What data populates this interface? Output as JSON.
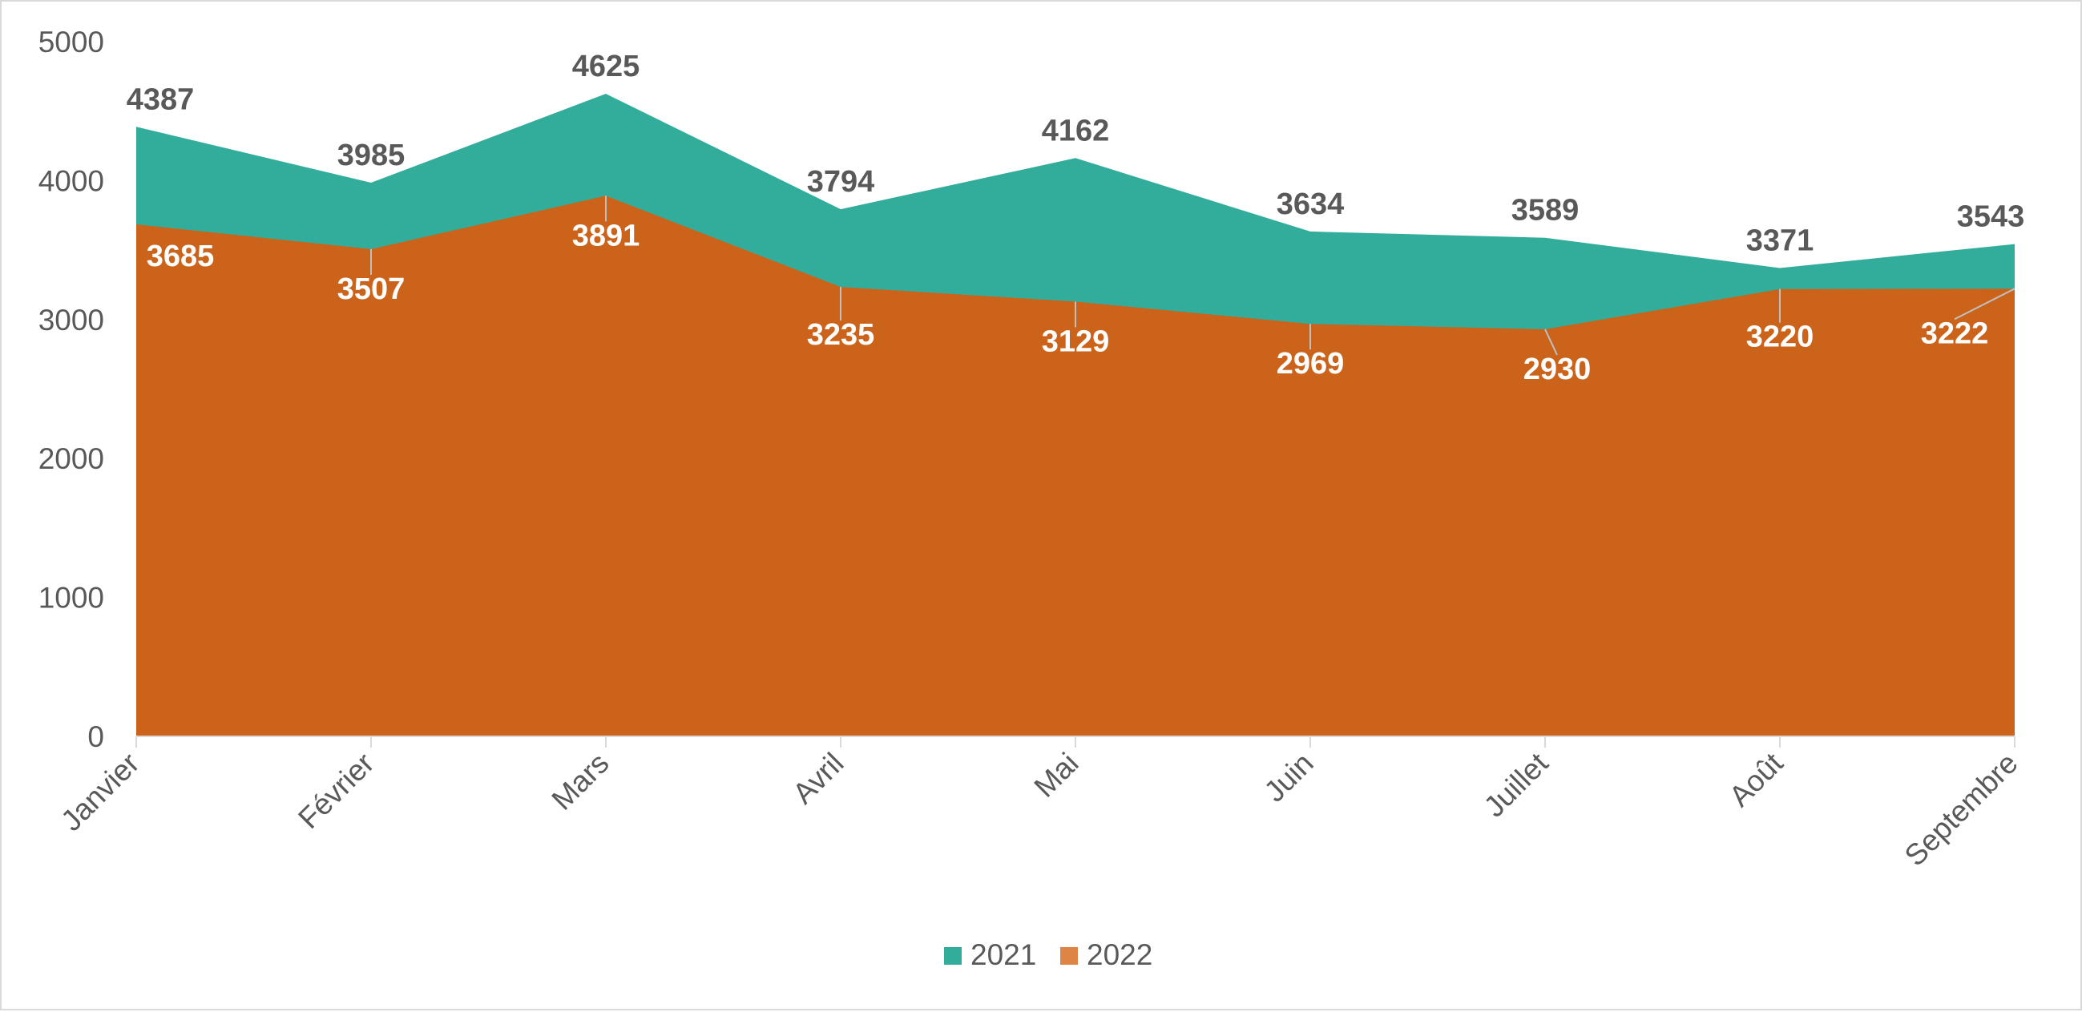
{
  "chart_data": {
    "type": "area",
    "categories": [
      "Janvier",
      "Février",
      "Mars",
      "Avril",
      "Mai",
      "Juin",
      "Juillet",
      "Août",
      "Septembre"
    ],
    "series": [
      {
        "name": "2021",
        "values": [
          4387,
          3985,
          4625,
          3794,
          4162,
          3634,
          3589,
          3371,
          3543
        ],
        "color": "#33ad9b"
      },
      {
        "name": "2022",
        "values": [
          3685,
          3507,
          3891,
          3235,
          3129,
          2969,
          2930,
          3220,
          3222
        ],
        "color": "#cc631a"
      }
    ],
    "legend_colors": {
      "2021": "#33ad9b",
      "2022": "#de8444"
    },
    "title": "",
    "xlabel": "",
    "ylabel": "",
    "ylim": [
      0,
      5000
    ],
    "yticks": [
      0,
      1000,
      2000,
      3000,
      4000,
      5000
    ],
    "grid": false,
    "legend_position": "bottom",
    "data_labels": true
  }
}
